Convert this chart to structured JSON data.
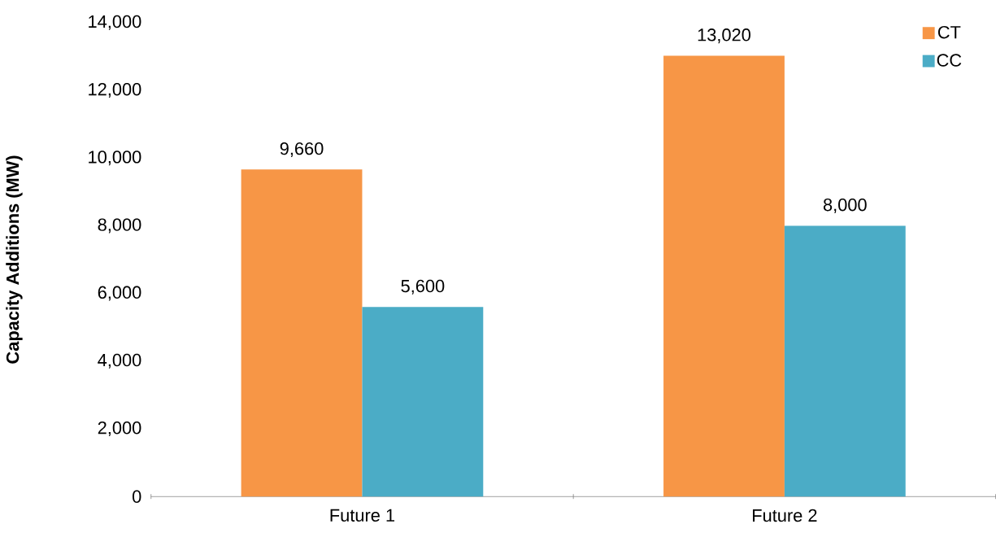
{
  "chart_data": {
    "type": "bar",
    "ylabel": "Capacity Additions (MW)",
    "categories": [
      "Future 1",
      "Future 2"
    ],
    "series": [
      {
        "name": "CT",
        "color": "#f79646",
        "values": [
          9660,
          13020
        ],
        "value_labels": [
          "9,660",
          "13,020"
        ]
      },
      {
        "name": "CC",
        "color": "#4bacc6",
        "values": [
          5600,
          8000
        ],
        "value_labels": [
          "5,600",
          "8,000"
        ]
      }
    ],
    "ylim": [
      0,
      14000
    ],
    "yticks": [
      0,
      {
        "value": 2000,
        "label": "2,000"
      },
      {
        "value": 4000,
        "label": "4,000"
      },
      {
        "value": 6000,
        "label": "6,000"
      },
      {
        "value": 8000,
        "label": "8,000"
      },
      {
        "value": 10000,
        "label": "10,000"
      },
      {
        "value": 12000,
        "label": "12,000"
      },
      {
        "value": 14000,
        "label": "14,000"
      }
    ],
    "legend": "top right"
  }
}
